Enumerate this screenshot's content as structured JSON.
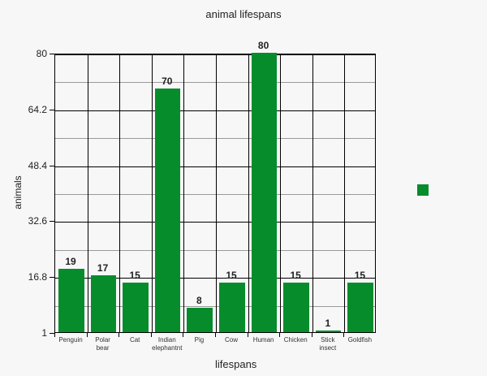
{
  "chart_data": {
    "type": "bar",
    "title": "animal lifespans",
    "xlabel": "lifespans",
    "ylabel": "animals",
    "categories": [
      "Penguin",
      "Polar bear",
      "Cat",
      "Indian elephantnt",
      "Pig",
      "Cow",
      "Human",
      "Chicken",
      "Stick insect",
      "Goldfish"
    ],
    "values": [
      19,
      17,
      15,
      70,
      8,
      15,
      80,
      15,
      1,
      15
    ],
    "ylim": [
      1,
      80
    ],
    "yticks": [
      "80",
      "64.2",
      "48.4",
      "32.6",
      "16.8",
      "1"
    ],
    "grid": true,
    "legend": {
      "position": "right",
      "entries": [
        ""
      ]
    },
    "bar_color": "#078c2c"
  }
}
